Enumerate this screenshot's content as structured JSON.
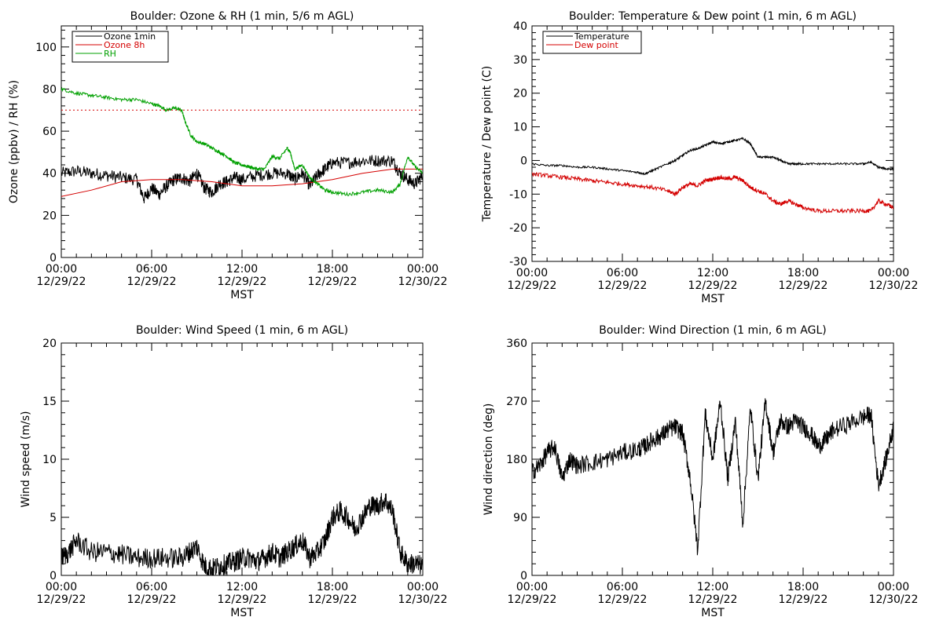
{
  "chart_data": [
    {
      "type": "line",
      "title": "Boulder: Ozone & RH (1 min, 5/6 m AGL)",
      "xlabel": "MST",
      "ylabel": "Ozone (ppbv) / RH (%)",
      "xlim": [
        0,
        24
      ],
      "ylim": [
        0,
        110
      ],
      "yticks": [
        0,
        20,
        40,
        60,
        80,
        100
      ],
      "xtick_labels": [
        [
          "00:00",
          "12/29/22"
        ],
        [
          "06:00",
          "12/29/22"
        ],
        [
          "12:00",
          "12/29/22"
        ],
        [
          "18:00",
          "12/29/22"
        ],
        [
          "00:00",
          "12/30/22"
        ]
      ],
      "legend": "top-left",
      "series": [
        {
          "name": "Ozone 1min",
          "color": "#000000",
          "noise": 3,
          "x": [
            0,
            1,
            2,
            3,
            4,
            5,
            5.5,
            6,
            6.5,
            7,
            7.5,
            8,
            8.5,
            9,
            9.5,
            10,
            10.5,
            11,
            11.5,
            12,
            13,
            14,
            15,
            15.5,
            16,
            16.5,
            17,
            17.5,
            18,
            19,
            20,
            21,
            22,
            22.5,
            23,
            23.5,
            24
          ],
          "y": [
            40,
            41,
            40,
            39,
            38,
            37,
            28,
            33,
            30,
            34,
            37,
            38,
            36,
            40,
            33,
            31,
            35,
            36,
            38,
            37,
            39,
            40,
            40,
            37,
            40,
            34,
            39,
            42,
            45,
            45,
            46,
            46,
            46,
            40,
            37,
            35,
            39
          ]
        },
        {
          "name": "Ozone 8h",
          "color": "#d40000",
          "noise": 0,
          "x": [
            0,
            2,
            4,
            6,
            8,
            10,
            12,
            14,
            16,
            18,
            20,
            22,
            24
          ],
          "y": [
            29,
            32,
            36,
            37,
            37,
            36,
            34,
            34,
            35,
            37,
            40,
            42,
            42
          ]
        },
        {
          "name": "RH",
          "color": "#00a000",
          "noise": 0.8,
          "x": [
            0,
            1,
            2,
            3,
            4,
            5,
            6,
            6.5,
            7,
            7.5,
            8,
            8.2,
            8.6,
            9,
            9.5,
            10,
            10.5,
            11,
            11.5,
            12,
            12.5,
            13,
            13.5,
            14,
            14.5,
            15,
            15.2,
            15.5,
            16,
            16.5,
            17,
            17.5,
            18,
            19,
            20,
            21,
            22,
            22.5,
            23,
            23.5,
            24
          ],
          "y": [
            80,
            78,
            77,
            76,
            75,
            75,
            73,
            72,
            70,
            71,
            70,
            65,
            58,
            55,
            54,
            52,
            50,
            48,
            45,
            44,
            43,
            42,
            42,
            48,
            47,
            52,
            50,
            42,
            44,
            38,
            35,
            32,
            31,
            30,
            31,
            32,
            31,
            35,
            48,
            43,
            40
          ]
        },
        {
          "name": "",
          "color": "#d40000",
          "dotted": true,
          "noise": 0,
          "x": [
            0,
            24
          ],
          "y": [
            70,
            70
          ]
        }
      ]
    },
    {
      "type": "line",
      "title": "Boulder: Temperature & Dew point (1 min, 6 m AGL)",
      "xlabel": "MST",
      "ylabel": "Temperature / Dew point (C)",
      "xlim": [
        0,
        24
      ],
      "ylim": [
        -30,
        40
      ],
      "yticks": [
        -30,
        -20,
        -10,
        0,
        10,
        20,
        30,
        40
      ],
      "xtick_labels": [
        [
          "00:00",
          "12/29/22"
        ],
        [
          "06:00",
          "12/29/22"
        ],
        [
          "12:00",
          "12/29/22"
        ],
        [
          "18:00",
          "12/29/22"
        ],
        [
          "00:00",
          "12/30/22"
        ]
      ],
      "legend": "top-left",
      "series": [
        {
          "name": "Temperature",
          "color": "#000000",
          "noise": 0.3,
          "x": [
            0,
            1,
            2,
            3,
            4,
            5,
            6,
            7,
            7.5,
            8,
            9,
            9.5,
            10,
            10.5,
            11,
            11.5,
            12,
            12.5,
            13,
            13.5,
            14,
            14.5,
            15,
            15.5,
            16,
            16.5,
            17,
            17.5,
            18,
            19,
            20,
            21,
            22,
            22.5,
            23,
            23.5,
            24
          ],
          "y": [
            -1,
            -1.5,
            -1.5,
            -2,
            -2,
            -2.5,
            -3,
            -3.5,
            -4,
            -3,
            -1,
            0,
            1.5,
            3,
            3.5,
            4.5,
            5.5,
            5,
            5.5,
            6,
            6.5,
            5,
            1,
            1,
            1,
            0,
            -1,
            -1,
            -1,
            -1,
            -1,
            -1,
            -1,
            -0.5,
            -2,
            -2.5,
            -2.5
          ]
        },
        {
          "name": "Dew point",
          "color": "#d40000",
          "noise": 0.6,
          "x": [
            0,
            1,
            2,
            3,
            4,
            5,
            6,
            7,
            8,
            9,
            9.5,
            10,
            10.5,
            11,
            11.5,
            12,
            12.5,
            13,
            13.5,
            14,
            14.5,
            15,
            15.5,
            16,
            16.5,
            17,
            17.5,
            18,
            19,
            20,
            21,
            22,
            22.5,
            23,
            23.5,
            24
          ],
          "y": [
            -4,
            -4.5,
            -5,
            -5.5,
            -6,
            -6.5,
            -7,
            -7.5,
            -8,
            -9,
            -10,
            -8,
            -7,
            -7.5,
            -6,
            -5.5,
            -5,
            -5.5,
            -5,
            -6,
            -8,
            -9,
            -10,
            -12,
            -13,
            -12,
            -13,
            -14,
            -15,
            -15,
            -15,
            -15,
            -15,
            -12,
            -13,
            -14
          ]
        }
      ]
    },
    {
      "type": "line",
      "title": "Boulder: Wind Speed (1 min, 6 m AGL)",
      "xlabel": "MST",
      "ylabel": "Wind speed (m/s)",
      "xlim": [
        0,
        24
      ],
      "ylim": [
        0,
        20
      ],
      "yticks": [
        0,
        5,
        10,
        15,
        20
      ],
      "xtick_labels": [
        [
          "00:00",
          "12/29/22"
        ],
        [
          "06:00",
          "12/29/22"
        ],
        [
          "12:00",
          "12/29/22"
        ],
        [
          "18:00",
          "12/29/22"
        ],
        [
          "00:00",
          "12/30/22"
        ]
      ],
      "series": [
        {
          "name": "",
          "color": "#000000",
          "noise": 0.9,
          "x": [
            0,
            0.5,
            1,
            2,
            3,
            4,
            5,
            6,
            7,
            8,
            8.5,
            9,
            9.5,
            10,
            10.5,
            11,
            11.5,
            12,
            12.5,
            13,
            13.5,
            14,
            14.5,
            15,
            15.5,
            16,
            16.5,
            17,
            17.5,
            18,
            18.5,
            19,
            19.5,
            20,
            20.5,
            21,
            21.5,
            22,
            22.5,
            23,
            23.5,
            24
          ],
          "y": [
            1.5,
            2,
            3,
            2,
            2,
            1.8,
            1.5,
            1.5,
            1.5,
            1.5,
            2,
            2.5,
            0.8,
            0.6,
            0.8,
            1,
            1.2,
            1.5,
            1.5,
            1.2,
            1.5,
            2,
            1.5,
            2,
            2.5,
            3,
            1.5,
            2,
            3,
            5,
            5.5,
            5,
            4,
            5,
            6,
            6,
            6.5,
            5.5,
            2,
            1,
            1,
            0.8
          ]
        }
      ]
    },
    {
      "type": "line",
      "title": "Boulder: Wind Direction (1 min, 6 m AGL)",
      "xlabel": "MST",
      "ylabel": "Wind direction (deg)",
      "xlim": [
        0,
        24
      ],
      "ylim": [
        0,
        360
      ],
      "yticks": [
        0,
        90,
        180,
        270,
        360
      ],
      "xtick_labels": [
        [
          "00:00",
          "12/29/22"
        ],
        [
          "06:00",
          "12/29/22"
        ],
        [
          "12:00",
          "12/29/22"
        ],
        [
          "18:00",
          "12/29/22"
        ],
        [
          "00:00",
          "12/30/22"
        ]
      ],
      "series": [
        {
          "name": "",
          "color": "#000000",
          "noise": 14,
          "x": [
            0,
            0.5,
            1,
            1.5,
            2,
            2.5,
            3,
            4,
            5,
            6,
            7,
            7.5,
            8,
            8.5,
            9,
            9.5,
            10,
            10.5,
            11,
            11.5,
            12,
            12.5,
            13,
            13.5,
            14,
            14.5,
            15,
            15.5,
            16,
            16.5,
            17,
            17.5,
            18,
            18.5,
            19,
            19.5,
            20,
            21,
            22,
            22.5,
            23,
            23.5,
            24
          ],
          "y": [
            160,
            170,
            190,
            200,
            150,
            180,
            170,
            175,
            180,
            190,
            195,
            200,
            210,
            215,
            225,
            230,
            220,
            150,
            40,
            250,
            180,
            270,
            150,
            240,
            80,
            260,
            150,
            270,
            190,
            240,
            230,
            240,
            230,
            220,
            200,
            210,
            225,
            235,
            245,
            250,
            140,
            180,
            230
          ]
        }
      ]
    }
  ]
}
